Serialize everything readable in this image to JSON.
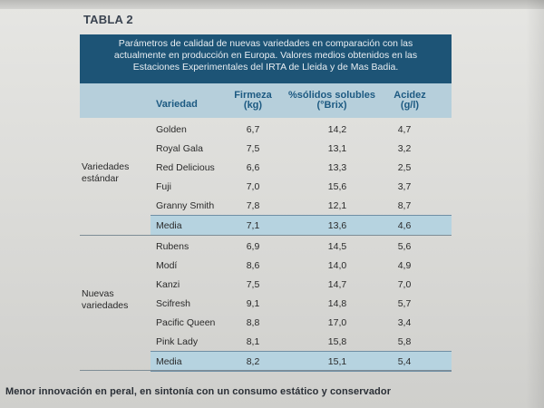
{
  "table_title": "TABLA 2",
  "caption": [
    "Parámetros de calidad de nuevas variedades en comparación con las",
    "actualmente en producción en Europa. Valores medios obtenidos en las",
    "Estaciones Experimentales del IRTA de Lleida y de Mas Badia."
  ],
  "headers": {
    "variedad": "Variedad",
    "firmeza": "Firmeza",
    "firmeza_unit": "(kg)",
    "solidos": "%sólidos solubles",
    "solidos_unit": "(°Brix)",
    "acidez": "Acidez",
    "acidez_unit": "(g/l)"
  },
  "group1": {
    "label_line1": "Variedades",
    "label_line2": "estándar",
    "rows": [
      {
        "name": "Golden",
        "firmeza": "6,7",
        "solidos": "14,2",
        "acidez": "4,7"
      },
      {
        "name": "Royal Gala",
        "firmeza": "7,5",
        "solidos": "13,1",
        "acidez": "3,2"
      },
      {
        "name": "Red Delicious",
        "firmeza": "6,6",
        "solidos": "13,3",
        "acidez": "2,5"
      },
      {
        "name": "Fuji",
        "firmeza": "7,0",
        "solidos": "15,6",
        "acidez": "3,7"
      },
      {
        "name": "Granny Smith",
        "firmeza": "7,8",
        "solidos": "12,1",
        "acidez": "8,7"
      }
    ],
    "media": {
      "name": "Media",
      "firmeza": "7,1",
      "solidos": "13,6",
      "acidez": "4,6"
    }
  },
  "group2": {
    "label_line1": "Nuevas",
    "label_line2": "variedades",
    "rows": [
      {
        "name": "Rubens",
        "firmeza": "6,9",
        "solidos": "14,5",
        "acidez": "5,6"
      },
      {
        "name": "Modí",
        "firmeza": "8,6",
        "solidos": "14,0",
        "acidez": "4,9"
      },
      {
        "name": "Kanzi",
        "firmeza": "7,5",
        "solidos": "14,7",
        "acidez": "7,0"
      },
      {
        "name": "Scifresh",
        "firmeza": "9,1",
        "solidos": "14,8",
        "acidez": "5,7"
      },
      {
        "name": "Pacific Queen",
        "firmeza": "8,8",
        "solidos": "17,0",
        "acidez": "3,4"
      },
      {
        "name": "Pink Lady",
        "firmeza": "8,1",
        "solidos": "15,8",
        "acidez": "5,8"
      }
    ],
    "media": {
      "name": "Media",
      "firmeza": "8,2",
      "solidos": "15,1",
      "acidez": "5,4"
    }
  },
  "footer_text": "Menor innovación en peral, en sintonía con un consumo estático y conservador",
  "colors": {
    "caption_bg": "#1d5476",
    "header_bg": "#b6cfdb",
    "header_text": "#1d5a82",
    "media_bg": "#b6d3e0"
  }
}
